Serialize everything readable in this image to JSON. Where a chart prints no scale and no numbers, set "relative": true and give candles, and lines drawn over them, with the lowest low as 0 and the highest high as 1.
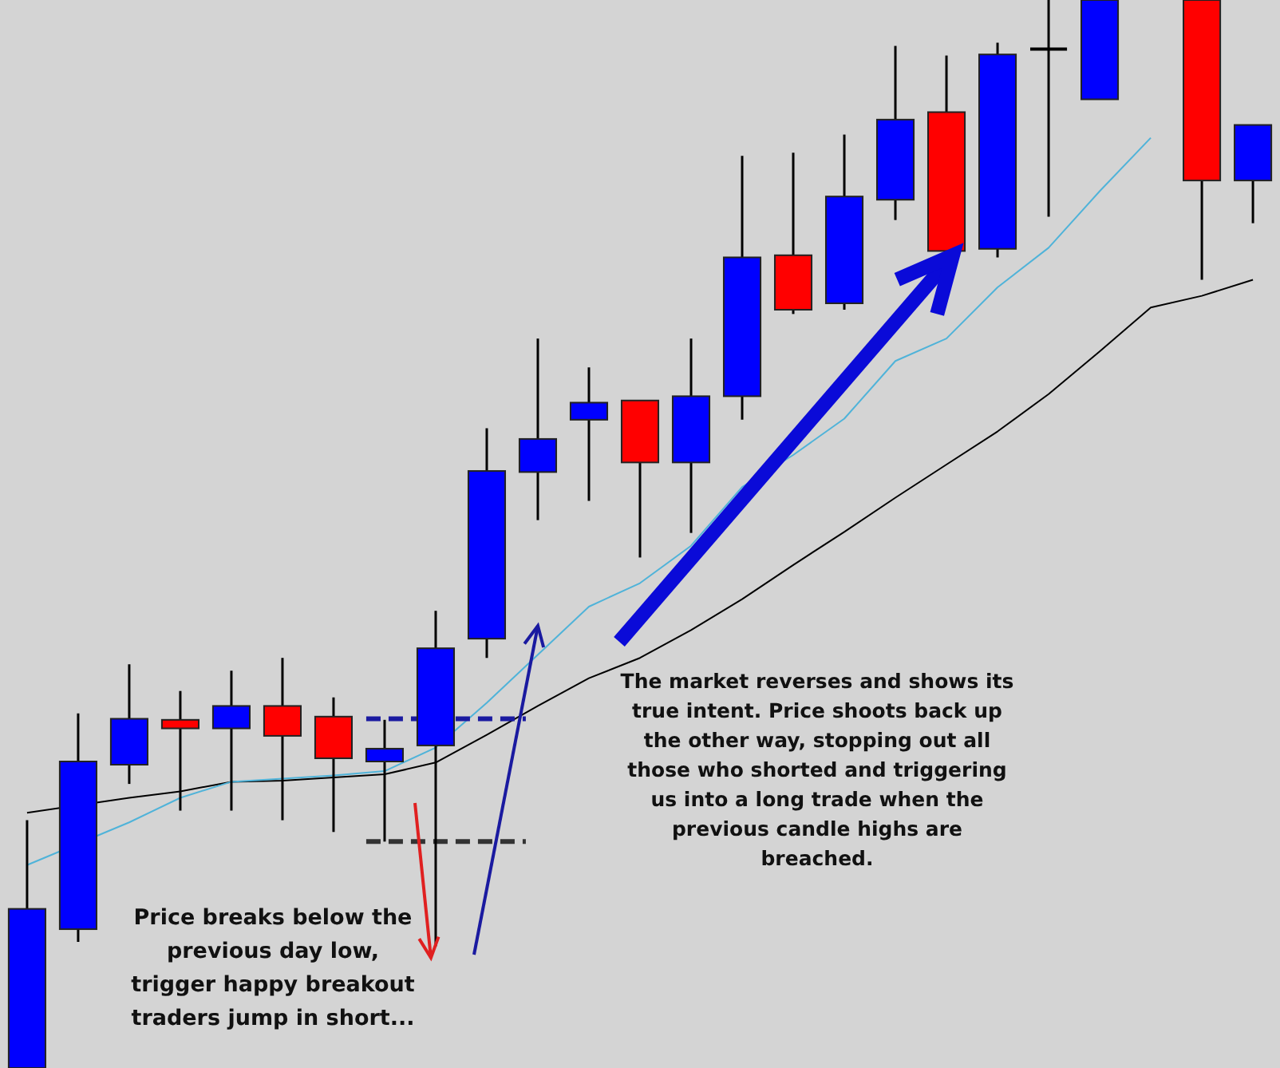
{
  "chart_data": {
    "type": "candlestick",
    "relative": true,
    "categories": [
      null,
      null,
      null,
      null,
      null,
      null,
      null,
      null,
      null,
      null,
      null,
      null,
      null,
      null,
      null,
      null,
      null,
      null,
      null,
      null,
      null,
      null,
      null,
      null,
      null
    ],
    "ohlc": [
      [
        0,
        0.232,
        0,
        0.149
      ],
      [
        0.13,
        0.332,
        0.118,
        0.287
      ],
      [
        0.284,
        0.378,
        0.266,
        0.327
      ],
      [
        0.326,
        0.353,
        0.241,
        0.318
      ],
      [
        0.318,
        0.372,
        0.241,
        0.339
      ],
      [
        0.339,
        0.384,
        0.232,
        0.311
      ],
      [
        0.329,
        0.347,
        0.221,
        0.29
      ],
      [
        0.287,
        0.326,
        0.212,
        0.299
      ],
      [
        0.302,
        0.428,
        0.114,
        0.393
      ],
      [
        0.402,
        0.599,
        0.384,
        0.559
      ],
      [
        0.558,
        0.683,
        0.513,
        0.589
      ],
      [
        0.607,
        0.656,
        0.531,
        0.623
      ],
      [
        0.625,
        0.625,
        0.478,
        0.567
      ],
      [
        0.567,
        0.683,
        0.501,
        0.629
      ],
      [
        0.629,
        0.854,
        0.607,
        0.759
      ],
      [
        0.761,
        0.857,
        0.706,
        0.71
      ],
      [
        0.716,
        0.874,
        0.71,
        0.816
      ],
      [
        0.813,
        0.957,
        0.794,
        0.888
      ],
      [
        0.895,
        0.948,
        0.765,
        0.765
      ],
      [
        0.767,
        0.96,
        0.759,
        0.949
      ],
      [
        0.954,
        1,
        0.797,
        0.954
      ],
      [
        0.907,
        1,
        0.907,
        1
      ],
      null,
      [
        1,
        1,
        0.738,
        0.831
      ],
      [
        0.831,
        0.883,
        0.791,
        0.883
      ]
    ],
    "colors": [
      "#0000ff",
      "#0000ff",
      "#0000ff",
      "#ff0000",
      "#0000ff",
      "#ff0000",
      "#ff0000",
      "#0000ff",
      "#0000ff",
      "#0000ff",
      "#0000ff",
      "#0000ff",
      "#ff0000",
      "#0000ff",
      "#0000ff",
      "#ff0000",
      "#0000ff",
      "#0000ff",
      "#ff0000",
      "#0000ff",
      "#000000",
      "#0000ff",
      null,
      "#ff0000",
      "#0000ff"
    ],
    "series": [
      {
        "type": "line",
        "color": "#000000",
        "values": [
          0.239,
          null,
          0.253,
          0.259,
          0.268,
          0.269,
          0.272,
          0.275,
          0.286,
          0.312,
          0.339,
          0.365,
          0.384,
          0.41,
          0.439,
          0.471,
          0.502,
          0.534,
          0.565,
          0.596,
          0.631,
          0.671,
          0.712,
          0.723,
          0.738
        ]
      },
      {
        "type": "line",
        "color": "#4fb3d9",
        "values": [
          0.19,
          null,
          0.23,
          0.253,
          0.268,
          0.271,
          0.274,
          0.278,
          0.3,
          0.342,
          0.387,
          0.432,
          0.454,
          0.489,
          0.544,
          0.574,
          0.608,
          0.662,
          0.683,
          0.731,
          0.768,
          0.821,
          0.871,
          null,
          null
        ]
      }
    ],
    "ref_lines": [
      {
        "axis": "y",
        "value": 0.327,
        "color": "#1a1aa0",
        "line_style": "dashed"
      },
      {
        "axis": "y",
        "value": 0.212,
        "color": "#333333",
        "line_style": "dashed"
      }
    ],
    "annotations": [
      "Price breaks below the previous day low, trigger happy breakout traders jump in short...",
      "The market reverses and shows its true intent. Price shoots back up the other way, stopping out all those who shorted and triggering us into a long trade when the previous candle highs are breached."
    ]
  }
}
